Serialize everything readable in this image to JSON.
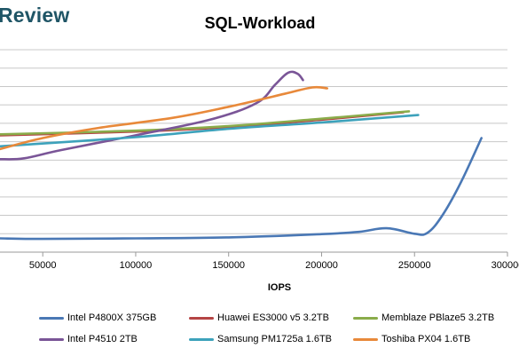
{
  "brand": {
    "text": "Review"
  },
  "chart_data": {
    "type": "line",
    "title": "SQL-Workload",
    "xlabel": "IOPS",
    "ylabel": "",
    "xlim": [
      27000,
      300000
    ],
    "ylim": [
      0,
      11
    ],
    "x_ticks": [
      "50000",
      "100000",
      "150000",
      "200000",
      "250000",
      "300000"
    ],
    "x_tick_values": [
      50000,
      100000,
      150000,
      200000,
      250000,
      300000
    ],
    "grid": "horizontal",
    "legend_position": "bottom",
    "series": [
      {
        "name": "Intel P4800X 375GB",
        "color": "#4a78b5",
        "points": [
          [
            27000,
            0.75
          ],
          [
            50000,
            0.72
          ],
          [
            100000,
            0.75
          ],
          [
            150000,
            0.8
          ],
          [
            200000,
            0.98
          ],
          [
            220000,
            1.1
          ],
          [
            235000,
            1.3
          ],
          [
            250000,
            1.0
          ],
          [
            257000,
            1.05
          ],
          [
            265000,
            2.0
          ],
          [
            275000,
            3.8
          ],
          [
            286000,
            6.2
          ]
        ]
      },
      {
        "name": "Huawei ES3000 v5 3.2TB",
        "color": "#b54444",
        "points": [
          [
            27000,
            6.35
          ],
          [
            100000,
            6.55
          ],
          [
            150000,
            6.8
          ],
          [
            200000,
            7.2
          ],
          [
            244000,
            7.6
          ]
        ]
      },
      {
        "name": "Memblaze PBlaze5 3.2TB",
        "color": "#8aac4a",
        "points": [
          [
            27000,
            6.4
          ],
          [
            100000,
            6.6
          ],
          [
            150000,
            6.85
          ],
          [
            200000,
            7.25
          ],
          [
            247000,
            7.65
          ]
        ]
      },
      {
        "name": "Intel P4510 2TB",
        "color": "#7a5597",
        "points": [
          [
            27000,
            5.05
          ],
          [
            40000,
            5.1
          ],
          [
            60000,
            5.55
          ],
          [
            100000,
            6.35
          ],
          [
            140000,
            7.2
          ],
          [
            165000,
            8.1
          ],
          [
            175000,
            9.1
          ],
          [
            182000,
            9.75
          ],
          [
            187000,
            9.7
          ],
          [
            190000,
            9.35
          ]
        ]
      },
      {
        "name": "Samsung PM1725a 1.6TB",
        "color": "#3da2bb",
        "points": [
          [
            27000,
            5.75
          ],
          [
            100000,
            6.25
          ],
          [
            150000,
            6.7
          ],
          [
            200000,
            7.05
          ],
          [
            252000,
            7.45
          ]
        ]
      },
      {
        "name": "Toshiba PX04 1.6TB",
        "color": "#e8893a",
        "points": [
          [
            27000,
            5.6
          ],
          [
            50000,
            6.2
          ],
          [
            80000,
            6.75
          ],
          [
            120000,
            7.3
          ],
          [
            150000,
            7.9
          ],
          [
            180000,
            8.6
          ],
          [
            195000,
            8.95
          ],
          [
            203000,
            8.9
          ]
        ]
      }
    ]
  }
}
